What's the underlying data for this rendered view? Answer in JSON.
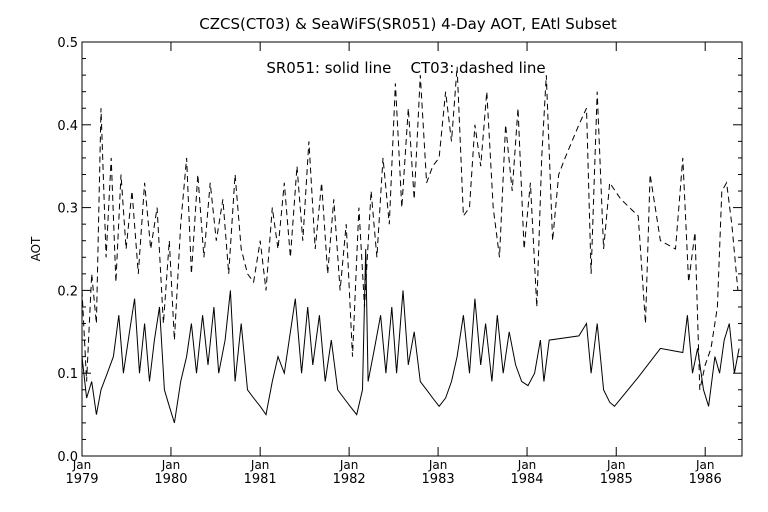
{
  "chart_data": {
    "type": "line",
    "title": "CZCS(CT03) & SeaWiFS(SR051) 4-Day AOT, EAtl Subset",
    "annotation": "SR051: solid line    CT03: dashed line",
    "ylabel": "AOT",
    "xlabel": "",
    "ylim": [
      0.0,
      0.5
    ],
    "xlim": [
      "1979-01-01",
      "1986-06-01"
    ],
    "yticks": [
      "0.0",
      "0.1",
      "0.2",
      "0.3",
      "0.4",
      "0.5"
    ],
    "xticks": [
      {
        "month": "Jan",
        "year": "1979",
        "date": "1979-01-01"
      },
      {
        "month": "Jan",
        "year": "1980",
        "date": "1980-01-01"
      },
      {
        "month": "Jan",
        "year": "1981",
        "date": "1981-01-01"
      },
      {
        "month": "Jan",
        "year": "1982",
        "date": "1982-01-01"
      },
      {
        "month": "Jan",
        "year": "1983",
        "date": "1983-01-01"
      },
      {
        "month": "Jan",
        "year": "1984",
        "date": "1984-01-01"
      },
      {
        "month": "Jan",
        "year": "1985",
        "date": "1985-01-01"
      },
      {
        "month": "Jan",
        "year": "1986",
        "date": "1986-01-01"
      }
    ],
    "grid": false,
    "series": [
      {
        "name": "SR051",
        "style": "solid",
        "color": "#000000",
        "points": [
          [
            "1979-01-01",
            0.12
          ],
          [
            "1979-01-20",
            0.07
          ],
          [
            "1979-02-10",
            0.09
          ],
          [
            "1979-03-01",
            0.05
          ],
          [
            "1979-03-20",
            0.08
          ],
          [
            "1979-04-15",
            0.1
          ],
          [
            "1979-05-10",
            0.12
          ],
          [
            "1979-06-01",
            0.17
          ],
          [
            "1979-06-20",
            0.1
          ],
          [
            "1979-07-15",
            0.15
          ],
          [
            "1979-08-05",
            0.19
          ],
          [
            "1979-08-25",
            0.1
          ],
          [
            "1979-09-15",
            0.16
          ],
          [
            "1979-10-05",
            0.09
          ],
          [
            "1979-10-25",
            0.14
          ],
          [
            "1979-11-15",
            0.18
          ],
          [
            "1979-12-05",
            0.08
          ],
          [
            "1979-12-25",
            0.06
          ],
          [
            "1980-01-15",
            0.04
          ],
          [
            "1980-02-10",
            0.09
          ],
          [
            "1980-03-05",
            0.12
          ],
          [
            "1980-03-25",
            0.16
          ],
          [
            "1980-04-15",
            0.1
          ],
          [
            "1980-05-10",
            0.17
          ],
          [
            "1980-06-01",
            0.11
          ],
          [
            "1980-06-25",
            0.18
          ],
          [
            "1980-07-15",
            0.1
          ],
          [
            "1980-08-10",
            0.14
          ],
          [
            "1980-09-01",
            0.2
          ],
          [
            "1980-09-20",
            0.09
          ],
          [
            "1980-10-15",
            0.16
          ],
          [
            "1980-11-10",
            0.08
          ],
          [
            "1980-12-05",
            0.07
          ],
          [
            "1981-01-01",
            0.06
          ],
          [
            "1981-01-25",
            0.05
          ],
          [
            "1981-02-20",
            0.09
          ],
          [
            "1981-03-15",
            0.12
          ],
          [
            "1981-04-10",
            0.1
          ],
          [
            "1981-05-05",
            0.15
          ],
          [
            "1981-05-25",
            0.19
          ],
          [
            "1981-06-20",
            0.1
          ],
          [
            "1981-07-15",
            0.18
          ],
          [
            "1981-08-05",
            0.11
          ],
          [
            "1981-09-01",
            0.17
          ],
          [
            "1981-09-25",
            0.09
          ],
          [
            "1981-10-20",
            0.14
          ],
          [
            "1981-11-15",
            0.08
          ],
          [
            "1981-12-10",
            0.07
          ],
          [
            "1982-01-05",
            0.06
          ],
          [
            "1982-02-01",
            0.05
          ],
          [
            "1982-02-25",
            0.08
          ],
          [
            "1982-03-10",
            0.25
          ],
          [
            "1982-03-20",
            0.09
          ],
          [
            "1982-04-15",
            0.13
          ],
          [
            "1982-05-10",
            0.17
          ],
          [
            "1982-06-01",
            0.1
          ],
          [
            "1982-06-25",
            0.18
          ],
          [
            "1982-07-15",
            0.1
          ],
          [
            "1982-08-10",
            0.2
          ],
          [
            "1982-09-01",
            0.11
          ],
          [
            "1982-09-25",
            0.15
          ],
          [
            "1982-10-20",
            0.09
          ],
          [
            "1982-11-15",
            0.08
          ],
          [
            "1982-12-10",
            0.07
          ],
          [
            "1983-01-05",
            0.06
          ],
          [
            "1983-02-01",
            0.07
          ],
          [
            "1983-02-25",
            0.09
          ],
          [
            "1983-03-20",
            0.12
          ],
          [
            "1983-04-15",
            0.17
          ],
          [
            "1983-05-10",
            0.1
          ],
          [
            "1983-06-01",
            0.19
          ],
          [
            "1983-06-25",
            0.11
          ],
          [
            "1983-07-15",
            0.16
          ],
          [
            "1983-08-10",
            0.09
          ],
          [
            "1983-09-01",
            0.17
          ],
          [
            "1983-09-25",
            0.1
          ],
          [
            "1983-10-20",
            0.15
          ],
          [
            "1983-11-15",
            0.11
          ],
          [
            "1983-12-10",
            0.09
          ],
          [
            "1984-01-05",
            0.085
          ],
          [
            "1984-02-01",
            0.1
          ],
          [
            "1984-02-25",
            0.14
          ],
          [
            "1984-03-10",
            0.09
          ],
          [
            "1984-04-01",
            0.14
          ],
          [
            "1984-08-01",
            0.145
          ],
          [
            "1984-09-01",
            0.16
          ],
          [
            "1984-09-20",
            0.1
          ],
          [
            "1984-10-15",
            0.16
          ],
          [
            "1984-11-10",
            0.08
          ],
          [
            "1984-12-05",
            0.065
          ],
          [
            "1984-12-25",
            0.06
          ],
          [
            "1985-04-01",
            0.095
          ],
          [
            "1985-07-01",
            0.13
          ],
          [
            "1985-10-01",
            0.125
          ],
          [
            "1985-10-20",
            0.17
          ],
          [
            "1985-11-10",
            0.1
          ],
          [
            "1985-12-01",
            0.13
          ],
          [
            "1985-12-25",
            0.08
          ],
          [
            "1986-01-15",
            0.06
          ],
          [
            "1986-02-10",
            0.12
          ],
          [
            "1986-03-01",
            0.1
          ],
          [
            "1986-03-20",
            0.14
          ],
          [
            "1986-04-10",
            0.16
          ],
          [
            "1986-05-01",
            0.1
          ],
          [
            "1986-05-20",
            0.13
          ]
        ]
      },
      {
        "name": "CT03",
        "style": "dashed",
        "color": "#000000",
        "points": [
          [
            "1979-01-01",
            0.2
          ],
          [
            "1979-01-20",
            0.09
          ],
          [
            "1979-02-10",
            0.22
          ],
          [
            "1979-03-01",
            0.16
          ],
          [
            "1979-03-20",
            0.42
          ],
          [
            "1979-04-10",
            0.24
          ],
          [
            "1979-05-01",
            0.36
          ],
          [
            "1979-05-20",
            0.21
          ],
          [
            "1979-06-10",
            0.34
          ],
          [
            "1979-07-01",
            0.25
          ],
          [
            "1979-07-25",
            0.32
          ],
          [
            "1979-08-20",
            0.22
          ],
          [
            "1979-09-15",
            0.33
          ],
          [
            "1979-10-10",
            0.25
          ],
          [
            "1979-11-05",
            0.3
          ],
          [
            "1979-12-01",
            0.16
          ],
          [
            "1979-12-25",
            0.26
          ],
          [
            "1980-01-15",
            0.14
          ],
          [
            "1980-02-10",
            0.28
          ],
          [
            "1980-03-05",
            0.36
          ],
          [
            "1980-03-25",
            0.22
          ],
          [
            "1980-04-20",
            0.34
          ],
          [
            "1980-05-15",
            0.24
          ],
          [
            "1980-06-10",
            0.33
          ],
          [
            "1980-07-05",
            0.26
          ],
          [
            "1980-08-01",
            0.31
          ],
          [
            "1980-08-25",
            0.22
          ],
          [
            "1980-09-20",
            0.34
          ],
          [
            "1980-10-15",
            0.25
          ],
          [
            "1980-11-10",
            0.22
          ],
          [
            "1980-12-05",
            0.21
          ],
          [
            "1981-01-01",
            0.26
          ],
          [
            "1981-01-25",
            0.2
          ],
          [
            "1981-02-20",
            0.3
          ],
          [
            "1981-03-15",
            0.25
          ],
          [
            "1981-04-10",
            0.33
          ],
          [
            "1981-05-05",
            0.24
          ],
          [
            "1981-06-01",
            0.35
          ],
          [
            "1981-06-25",
            0.26
          ],
          [
            "1981-07-20",
            0.38
          ],
          [
            "1981-08-15",
            0.25
          ],
          [
            "1981-09-10",
            0.33
          ],
          [
            "1981-10-05",
            0.22
          ],
          [
            "1981-10-30",
            0.31
          ],
          [
            "1981-11-25",
            0.2
          ],
          [
            "1981-12-20",
            0.28
          ],
          [
            "1982-01-15",
            0.12
          ],
          [
            "1982-02-10",
            0.3
          ],
          [
            "1982-03-05",
            0.18
          ],
          [
            "1982-04-01",
            0.32
          ],
          [
            "1982-04-25",
            0.24
          ],
          [
            "1982-05-20",
            0.36
          ],
          [
            "1982-06-15",
            0.28
          ],
          [
            "1982-07-10",
            0.45
          ],
          [
            "1982-08-05",
            0.3
          ],
          [
            "1982-09-01",
            0.42
          ],
          [
            "1982-09-25",
            0.31
          ],
          [
            "1982-10-20",
            0.46
          ],
          [
            "1982-11-15",
            0.33
          ],
          [
            "1982-12-10",
            0.35
          ],
          [
            "1983-01-05",
            0.36
          ],
          [
            "1983-02-01",
            0.44
          ],
          [
            "1983-02-25",
            0.38
          ],
          [
            "1983-03-20",
            0.47
          ],
          [
            "1983-04-15",
            0.29
          ],
          [
            "1983-05-10",
            0.3
          ],
          [
            "1983-06-01",
            0.4
          ],
          [
            "1983-06-25",
            0.35
          ],
          [
            "1983-07-20",
            0.44
          ],
          [
            "1983-08-15",
            0.3
          ],
          [
            "1983-09-10",
            0.24
          ],
          [
            "1983-10-05",
            0.4
          ],
          [
            "1983-11-01",
            0.32
          ],
          [
            "1983-11-25",
            0.42
          ],
          [
            "1983-12-20",
            0.25
          ],
          [
            "1984-01-15",
            0.33
          ],
          [
            "1984-02-10",
            0.18
          ],
          [
            "1984-03-01",
            0.36
          ],
          [
            "1984-03-20",
            0.46
          ],
          [
            "1984-04-15",
            0.26
          ],
          [
            "1984-05-10",
            0.34
          ],
          [
            "1984-06-05",
            0.36
          ],
          [
            "1984-08-01",
            0.4
          ],
          [
            "1984-09-01",
            0.42
          ],
          [
            "1984-09-20",
            0.22
          ],
          [
            "1984-10-15",
            0.44
          ],
          [
            "1984-11-10",
            0.25
          ],
          [
            "1984-12-05",
            0.33
          ],
          [
            "1985-01-20",
            0.31
          ],
          [
            "1985-04-01",
            0.29
          ],
          [
            "1985-05-01",
            0.16
          ],
          [
            "1985-05-20",
            0.34
          ],
          [
            "1985-07-01",
            0.26
          ],
          [
            "1985-09-01",
            0.25
          ],
          [
            "1985-10-01",
            0.36
          ],
          [
            "1985-10-25",
            0.21
          ],
          [
            "1985-11-20",
            0.27
          ],
          [
            "1985-12-10",
            0.08
          ],
          [
            "1986-01-01",
            0.11
          ],
          [
            "1986-01-25",
            0.13
          ],
          [
            "1986-02-20",
            0.18
          ],
          [
            "1986-03-10",
            0.32
          ],
          [
            "1986-03-30",
            0.33
          ],
          [
            "1986-04-20",
            0.28
          ],
          [
            "1986-05-15",
            0.2
          ]
        ]
      }
    ]
  }
}
